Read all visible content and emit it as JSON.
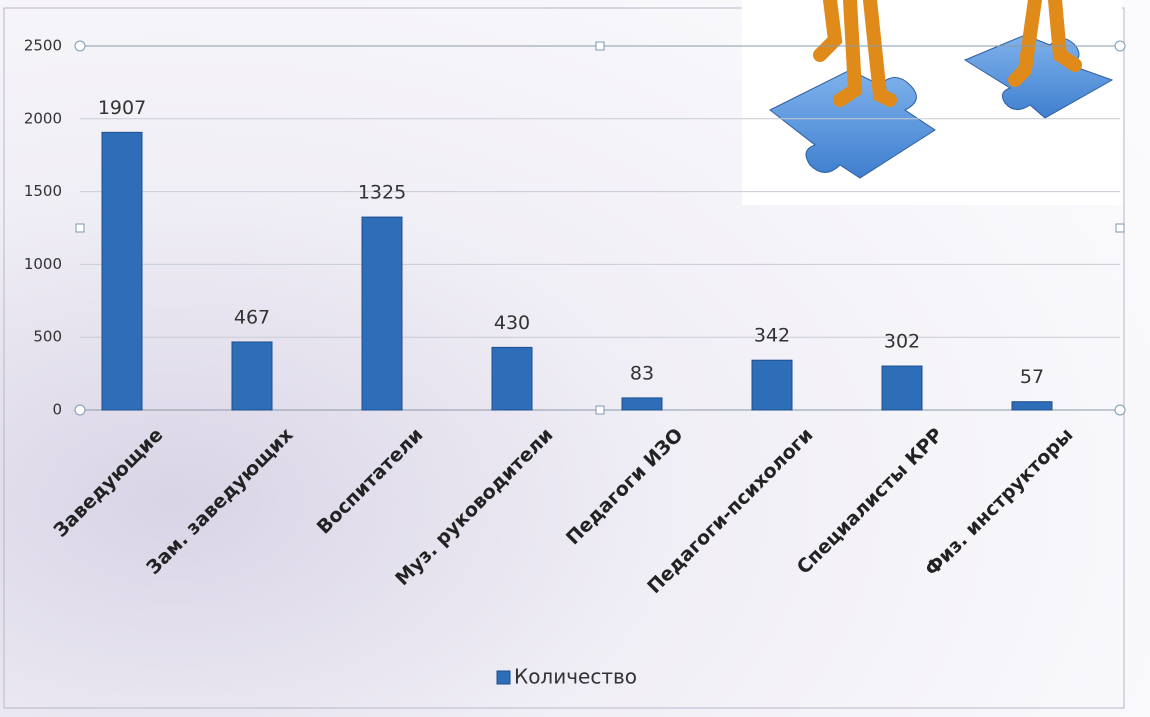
{
  "chart_data": {
    "type": "bar",
    "categories": [
      "Заведующие",
      "Зам. заведующих",
      "Воспитатели",
      "Муз. руководители",
      "Педагоги ИЗО",
      "Педагоги-психологи",
      "Специалисты КРР",
      "Физ. инструкторы"
    ],
    "series": [
      {
        "name": "Количество",
        "color": "#2e6db8",
        "values": [
          1907,
          467,
          1325,
          430,
          83,
          342,
          302,
          57
        ]
      }
    ],
    "ylim": [
      0,
      2500
    ],
    "yticks": [
      0,
      500,
      1000,
      1500,
      2000,
      2500
    ],
    "grid": true,
    "legend": "bottom"
  }
}
